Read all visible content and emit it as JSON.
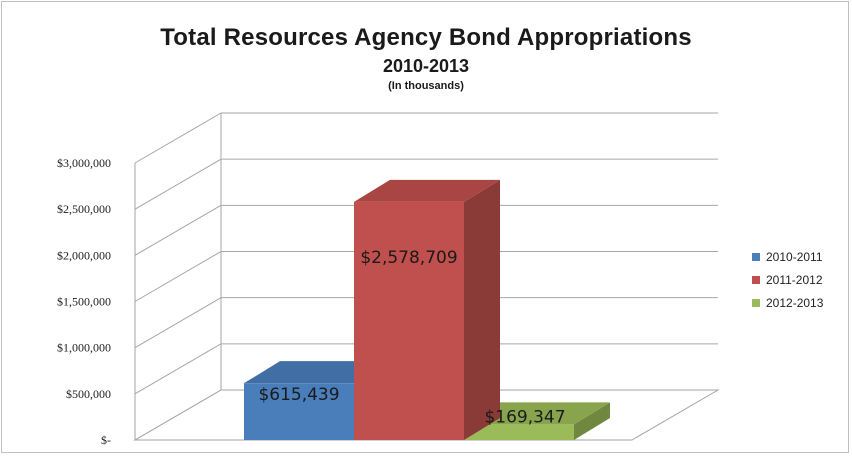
{
  "chart_data": {
    "type": "bar",
    "title": "Total Resources Agency Bond Appropriations",
    "subtitle": "2010-2013",
    "unit_note": "(In thousands)",
    "xlabel": "",
    "ylabel": "",
    "categories": [
      "2010-2011",
      "2011-2012",
      "2012-2013"
    ],
    "series": [
      {
        "name": "2010-2011",
        "value": 615439,
        "label": "$615,439",
        "color": "#4a7ebb"
      },
      {
        "name": "2011-2012",
        "value": 2578709,
        "label": "$2,578,709",
        "color": "#c0504d"
      },
      {
        "name": "2012-2013",
        "value": 169347,
        "label": "$169,347",
        "color": "#9bbb59"
      }
    ],
    "yticks": [
      {
        "value": 0,
        "label": "$-"
      },
      {
        "value": 500000,
        "label": "$500,000"
      },
      {
        "value": 1000000,
        "label": "$1,000,000"
      },
      {
        "value": 1500000,
        "label": "$1,500,000"
      },
      {
        "value": 2000000,
        "label": "$2,000,000"
      },
      {
        "value": 2500000,
        "label": "$2,500,000"
      },
      {
        "value": 3000000,
        "label": "$3,000,000"
      }
    ],
    "ylim": [
      0,
      3000000
    ],
    "grid": true,
    "style": "3d",
    "legend_position": "right"
  }
}
